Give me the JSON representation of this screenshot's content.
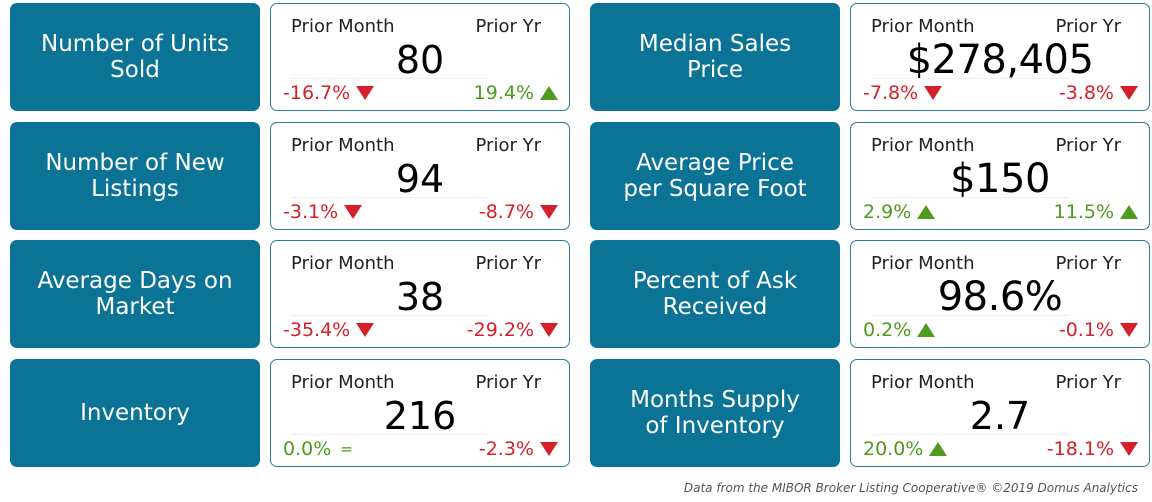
{
  "header_left": "Prior Month",
  "header_right": "Prior Yr",
  "metrics": [
    {
      "label": "Number of Units\nSold",
      "value": "80",
      "month_change": "-16.7%",
      "month_dir": "down",
      "year_change": "19.4%",
      "year_dir": "up"
    },
    {
      "label": "Number of New\nListings",
      "value": "94",
      "month_change": "-3.1%",
      "month_dir": "down",
      "year_change": "-8.7%",
      "year_dir": "down"
    },
    {
      "label": "Average Days on\nMarket",
      "value": "38",
      "month_change": "-35.4%",
      "month_dir": "down",
      "year_change": "-29.2%",
      "year_dir": "down"
    },
    {
      "label": "Inventory",
      "value": "216",
      "month_change": "0.0%",
      "month_dir": "flat",
      "year_change": "-2.3%",
      "year_dir": "down"
    },
    {
      "label": "Median Sales\nPrice",
      "value": "$278,405",
      "month_change": "-7.8%",
      "month_dir": "down",
      "year_change": "-3.8%",
      "year_dir": "down"
    },
    {
      "label": "Average Price\nper Square Foot",
      "value": "$150",
      "month_change": "2.9%",
      "month_dir": "up",
      "year_change": "11.5%",
      "year_dir": "up"
    },
    {
      "label": "Percent of Ask\nReceived",
      "value": "98.6%",
      "month_change": "0.2%",
      "month_dir": "up",
      "year_change": "-0.1%",
      "year_dir": "down"
    },
    {
      "label": "Months Supply\nof Inventory",
      "value": "2.7",
      "month_change": "20.0%",
      "month_dir": "up",
      "year_change": "-18.1%",
      "year_dir": "down"
    }
  ],
  "flat_symbol": "=",
  "colors": {
    "panel": "#0b7396",
    "up": "#4f9a1f",
    "down": "#d4202a"
  },
  "footer": "Data from the MIBOR Broker Listing Cooperative®   ©2019 Domus Analytics"
}
